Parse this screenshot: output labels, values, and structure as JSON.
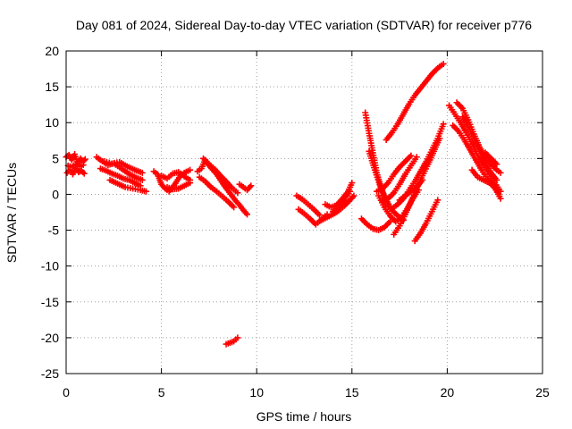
{
  "chart_data": {
    "type": "scatter",
    "title": "Day 081 of 2024, Sidereal Day-to-day VTEC variation (SDTVAR) for receiver p776",
    "xlabel": "GPS time / hours",
    "ylabel": "SDTVAR / TECUs",
    "xlim": [
      0,
      25
    ],
    "ylim": [
      -25,
      20
    ],
    "xticks": [
      0,
      5,
      10,
      15,
      20,
      25
    ],
    "yticks": [
      -25,
      -20,
      -15,
      -10,
      -5,
      0,
      5,
      10,
      15,
      20
    ],
    "xtick_labels": [
      "0",
      "5",
      "10",
      "15",
      "20",
      "25"
    ],
    "ytick_labels": [
      "-25",
      "-20",
      "-15",
      "-10",
      "-5",
      "0",
      "5",
      "10",
      "15",
      "20"
    ],
    "grid": true,
    "legend": "none",
    "marker": "plus",
    "color": "#ff0000",
    "series": [
      {
        "name": "s1",
        "x": [
          0.0,
          0.15,
          0.3,
          0.45,
          0.6,
          0.75,
          0.9,
          1.0
        ],
        "y": [
          5.2,
          5.5,
          4.8,
          5.6,
          4.2,
          5.0,
          4.6,
          4.9
        ]
      },
      {
        "name": "s2",
        "x": [
          0.05,
          0.2,
          0.35,
          0.5,
          0.65,
          0.8,
          0.95
        ],
        "y": [
          3.0,
          3.4,
          2.8,
          3.6,
          3.1,
          3.3,
          2.9
        ]
      },
      {
        "name": "s3",
        "x": [
          0.1,
          0.3,
          0.5,
          0.7,
          0.9
        ],
        "y": [
          4.0,
          3.8,
          4.2,
          3.9,
          4.1
        ]
      },
      {
        "name": "s4",
        "x": [
          1.6,
          1.9,
          2.2,
          2.5,
          2.8,
          3.1,
          3.4,
          3.7,
          4.0
        ],
        "y": [
          5.2,
          4.6,
          4.1,
          4.3,
          3.8,
          3.2,
          2.7,
          2.3,
          2.0
        ]
      },
      {
        "name": "s5",
        "x": [
          1.8,
          2.1,
          2.4,
          2.7,
          3.0,
          3.3,
          3.6,
          3.9
        ],
        "y": [
          3.6,
          3.3,
          2.9,
          2.6,
          2.2,
          2.0,
          1.6,
          1.2
        ]
      },
      {
        "name": "s6",
        "x": [
          2.0,
          2.4,
          2.8,
          3.2,
          3.6,
          4.0
        ],
        "y": [
          4.6,
          4.3,
          4.5,
          3.9,
          3.4,
          3.0
        ]
      },
      {
        "name": "s7",
        "x": [
          2.3,
          2.7,
          3.1,
          3.5,
          3.9,
          4.2
        ],
        "y": [
          2.0,
          1.5,
          1.0,
          0.8,
          0.6,
          0.4
        ]
      },
      {
        "name": "s8",
        "x": [
          4.6,
          4.8,
          5.0,
          5.2,
          5.4,
          5.6,
          5.8,
          6.0,
          6.2,
          6.5
        ],
        "y": [
          3.2,
          2.8,
          1.4,
          0.8,
          0.4,
          1.0,
          1.8,
          2.6,
          3.0,
          3.4
        ]
      },
      {
        "name": "s9",
        "x": [
          5.0,
          5.3,
          5.6,
          5.9,
          6.2,
          6.5
        ],
        "y": [
          2.6,
          2.2,
          2.9,
          3.1,
          2.5,
          2.0
        ]
      },
      {
        "name": "s10",
        "x": [
          5.3,
          5.6,
          5.9,
          6.2,
          6.5
        ],
        "y": [
          1.0,
          0.7,
          0.8,
          1.2,
          1.6
        ]
      },
      {
        "name": "s11",
        "x": [
          6.9,
          7.1,
          7.3,
          7.5,
          7.7,
          7.9,
          8.1,
          8.3,
          8.5,
          8.7,
          8.9,
          9.1,
          9.3,
          9.5
        ],
        "y": [
          3.2,
          3.6,
          4.8,
          4.0,
          3.4,
          2.8,
          2.0,
          1.2,
          0.5,
          -0.2,
          -0.9,
          -1.5,
          -2.2,
          -2.8
        ]
      },
      {
        "name": "s12",
        "x": [
          7.0,
          7.3,
          7.6,
          7.9,
          8.2,
          8.5,
          8.8
        ],
        "y": [
          2.4,
          1.8,
          1.0,
          0.4,
          -0.3,
          -1.0,
          -1.8
        ]
      },
      {
        "name": "s13",
        "x": [
          7.2,
          7.5,
          7.8,
          8.1,
          8.4,
          8.7,
          9.0
        ],
        "y": [
          5.0,
          4.2,
          3.5,
          2.6,
          1.8,
          0.9,
          0.2
        ]
      },
      {
        "name": "s14",
        "x": [
          9.1,
          9.3,
          9.5,
          9.7
        ],
        "y": [
          1.4,
          1.0,
          0.6,
          1.2
        ]
      },
      {
        "name": "s15",
        "x": [
          8.4,
          8.6,
          8.8,
          9.0
        ],
        "y": [
          -20.9,
          -20.7,
          -20.5,
          -20.0
        ]
      },
      {
        "name": "s16",
        "x": [
          12.1,
          12.4,
          12.7,
          13.0,
          13.3
        ],
        "y": [
          -0.2,
          -0.7,
          -1.4,
          -2.1,
          -2.9
        ]
      },
      {
        "name": "s17",
        "x": [
          12.2,
          12.5,
          12.8,
          13.1,
          13.4,
          13.7
        ],
        "y": [
          -2.1,
          -2.7,
          -3.4,
          -4.2,
          -3.5,
          -2.8
        ]
      },
      {
        "name": "s18",
        "x": [
          13.4,
          13.7,
          14.0,
          14.3,
          14.6,
          14.9,
          15.1
        ],
        "y": [
          -3.6,
          -3.2,
          -2.8,
          -2.3,
          -1.6,
          -0.8,
          -0.2
        ]
      },
      {
        "name": "s19",
        "x": [
          13.6,
          13.9,
          14.2,
          14.5,
          14.8,
          15.0
        ],
        "y": [
          -1.4,
          -1.8,
          -1.5,
          -0.6,
          0.4,
          1.6
        ]
      },
      {
        "name": "s20",
        "x": [
          14.0,
          14.3,
          14.6,
          14.9
        ],
        "y": [
          -2.4,
          -1.8,
          -0.8,
          0.4
        ]
      },
      {
        "name": "s21",
        "x": [
          15.7,
          15.9,
          16.1,
          16.3,
          16.5,
          16.7,
          16.9
        ],
        "y": [
          11.4,
          8.5,
          5.8,
          3.0,
          1.2,
          -0.4,
          -1.6
        ]
      },
      {
        "name": "s22",
        "x": [
          15.5,
          15.8,
          16.1,
          16.4,
          16.7,
          17.0
        ],
        "y": [
          -3.4,
          -4.2,
          -4.8,
          -5.0,
          -4.6,
          -3.8
        ]
      },
      {
        "name": "s23",
        "x": [
          15.9,
          16.2,
          16.5,
          16.8,
          17.1,
          17.4,
          17.7
        ],
        "y": [
          6.0,
          3.4,
          1.0,
          -0.8,
          -2.2,
          -3.0,
          -3.6
        ]
      },
      {
        "name": "s24",
        "x": [
          16.3,
          16.6,
          16.9,
          17.2,
          17.5,
          17.8,
          18.1
        ],
        "y": [
          0.4,
          0.8,
          1.6,
          2.8,
          3.8,
          4.6,
          5.4
        ]
      },
      {
        "name": "s25",
        "x": [
          16.6,
          16.9,
          17.2,
          17.5,
          17.8,
          18.1,
          18.4
        ],
        "y": [
          -1.0,
          -0.6,
          0.2,
          1.4,
          2.8,
          4.0,
          5.2
        ]
      },
      {
        "name": "s26",
        "x": [
          16.8,
          17.1,
          17.4,
          17.7,
          18.0,
          18.3,
          18.6,
          18.9,
          19.2,
          19.5,
          19.8
        ],
        "y": [
          7.6,
          8.6,
          9.8,
          11.2,
          12.6,
          13.8,
          14.8,
          15.8,
          16.8,
          17.6,
          18.2
        ]
      },
      {
        "name": "s27",
        "x": [
          17.1,
          17.4,
          17.7,
          18.0,
          18.3,
          18.6,
          18.9,
          19.2,
          19.5,
          19.8
        ],
        "y": [
          -2.0,
          -1.4,
          -0.6,
          0.6,
          1.8,
          3.2,
          4.6,
          6.2,
          7.8,
          9.8
        ]
      },
      {
        "name": "s28",
        "x": [
          17.2,
          17.5,
          17.8,
          18.1,
          18.4,
          18.7,
          19.0,
          19.3,
          19.6
        ],
        "y": [
          -5.6,
          -4.4,
          -2.8,
          -1.0,
          0.8,
          2.6,
          4.2,
          6.0,
          7.8
        ]
      },
      {
        "name": "s29",
        "x": [
          18.3,
          18.6,
          18.9,
          19.2,
          19.5
        ],
        "y": [
          -6.5,
          -5.4,
          -4.0,
          -2.4,
          -0.8
        ]
      },
      {
        "name": "s30",
        "x": [
          16.4,
          16.7,
          17.0,
          17.3,
          17.6,
          17.9,
          18.2,
          18.5
        ],
        "y": [
          -0.2,
          -1.8,
          -3.0,
          -3.8,
          -3.2,
          -2.0,
          -0.6,
          0.6
        ]
      },
      {
        "name": "s31",
        "x": [
          17.5,
          17.8,
          18.1,
          18.4,
          18.7
        ],
        "y": [
          -0.8,
          -0.2,
          0.4,
          1.0,
          2.0
        ]
      },
      {
        "name": "s32",
        "x": [
          20.1,
          20.4,
          20.7,
          21.0,
          21.3,
          21.6,
          21.9,
          22.2,
          22.5,
          22.8
        ],
        "y": [
          12.4,
          11.2,
          10.0,
          8.6,
          7.0,
          5.4,
          4.0,
          2.8,
          1.6,
          0.4
        ]
      },
      {
        "name": "s33",
        "x": [
          20.3,
          20.6,
          20.9,
          21.2,
          21.5,
          21.8,
          22.1,
          22.4,
          22.7
        ],
        "y": [
          9.6,
          8.8,
          7.6,
          6.2,
          4.8,
          3.4,
          2.2,
          1.2,
          0.0
        ]
      },
      {
        "name": "s34",
        "x": [
          20.5,
          20.8,
          21.1,
          21.4,
          21.7,
          22.0,
          22.3,
          22.6,
          22.8
        ],
        "y": [
          12.8,
          12.0,
          10.4,
          8.4,
          6.6,
          5.2,
          4.2,
          3.4,
          3.0
        ]
      },
      {
        "name": "s35",
        "x": [
          20.8,
          21.1,
          21.4,
          21.7,
          22.0,
          22.3,
          22.6
        ],
        "y": [
          10.8,
          9.4,
          7.8,
          6.0,
          4.4,
          3.0,
          2.0
        ]
      },
      {
        "name": "s36",
        "x": [
          21.3,
          21.6,
          21.9,
          22.2,
          22.5,
          22.8
        ],
        "y": [
          3.4,
          2.4,
          2.0,
          1.6,
          1.0,
          -0.6
        ]
      },
      {
        "name": "s37",
        "x": [
          22.0,
          22.3,
          22.6
        ],
        "y": [
          5.8,
          5.0,
          4.2
        ]
      }
    ]
  }
}
